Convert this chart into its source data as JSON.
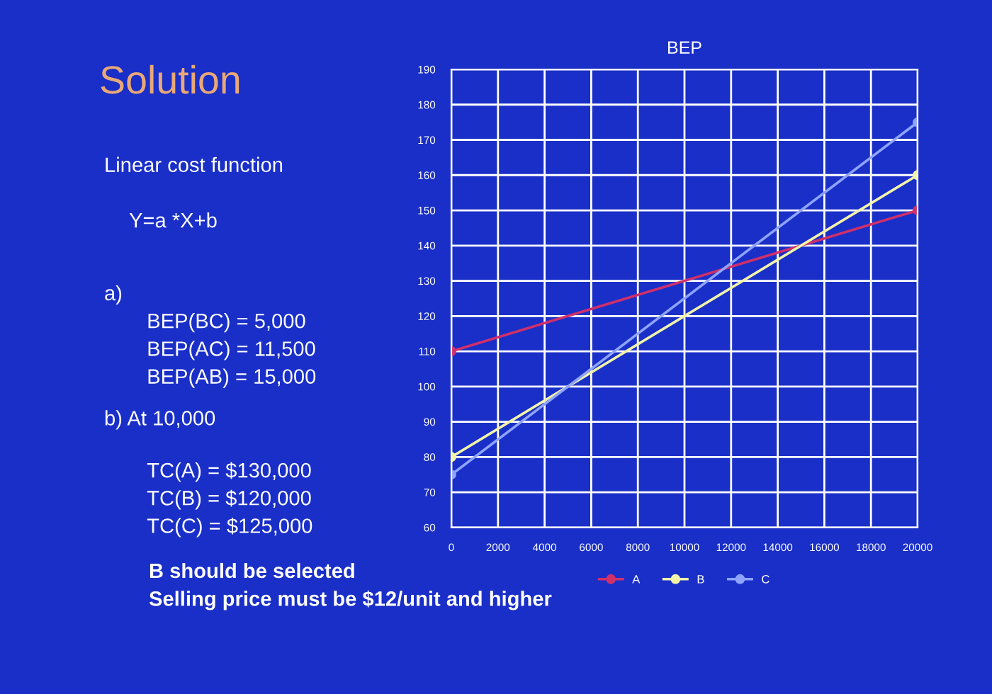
{
  "chart_data": {
    "type": "line",
    "title": "BEP",
    "x": [
      0,
      20000
    ],
    "series": [
      {
        "name": "A",
        "color": "#d0306a",
        "values": [
          110,
          150
        ]
      },
      {
        "name": "B",
        "color": "#f2f5a8",
        "values": [
          80,
          160
        ]
      },
      {
        "name": "C",
        "color": "#8ea4ff",
        "values": [
          75,
          175
        ]
      }
    ],
    "xlim": [
      0,
      20000
    ],
    "xticks": [
      0,
      2000,
      4000,
      6000,
      8000,
      10000,
      12000,
      14000,
      16000,
      18000,
      20000
    ],
    "ylim": [
      60,
      190
    ],
    "yticks": [
      60,
      70,
      80,
      90,
      100,
      110,
      120,
      130,
      140,
      150,
      160,
      170,
      180,
      190
    ],
    "grid": true,
    "legend": "bottom",
    "marker": "circle",
    "line_style": "solid",
    "annotations": [
      "Solution",
      "Linear cost function",
      "Y=a *X+b",
      "a)",
      "BEP(BC) = 5,000",
      "BEP(AC) = 11,500",
      "BEP(AB) = 15,000",
      "b) At 10,000",
      "TC(A) = $130,000",
      "TC(B) = $120,000",
      "TC(C) = $125,000",
      "B should be selected",
      "Selling price must be $12/unit and higher"
    ]
  }
}
